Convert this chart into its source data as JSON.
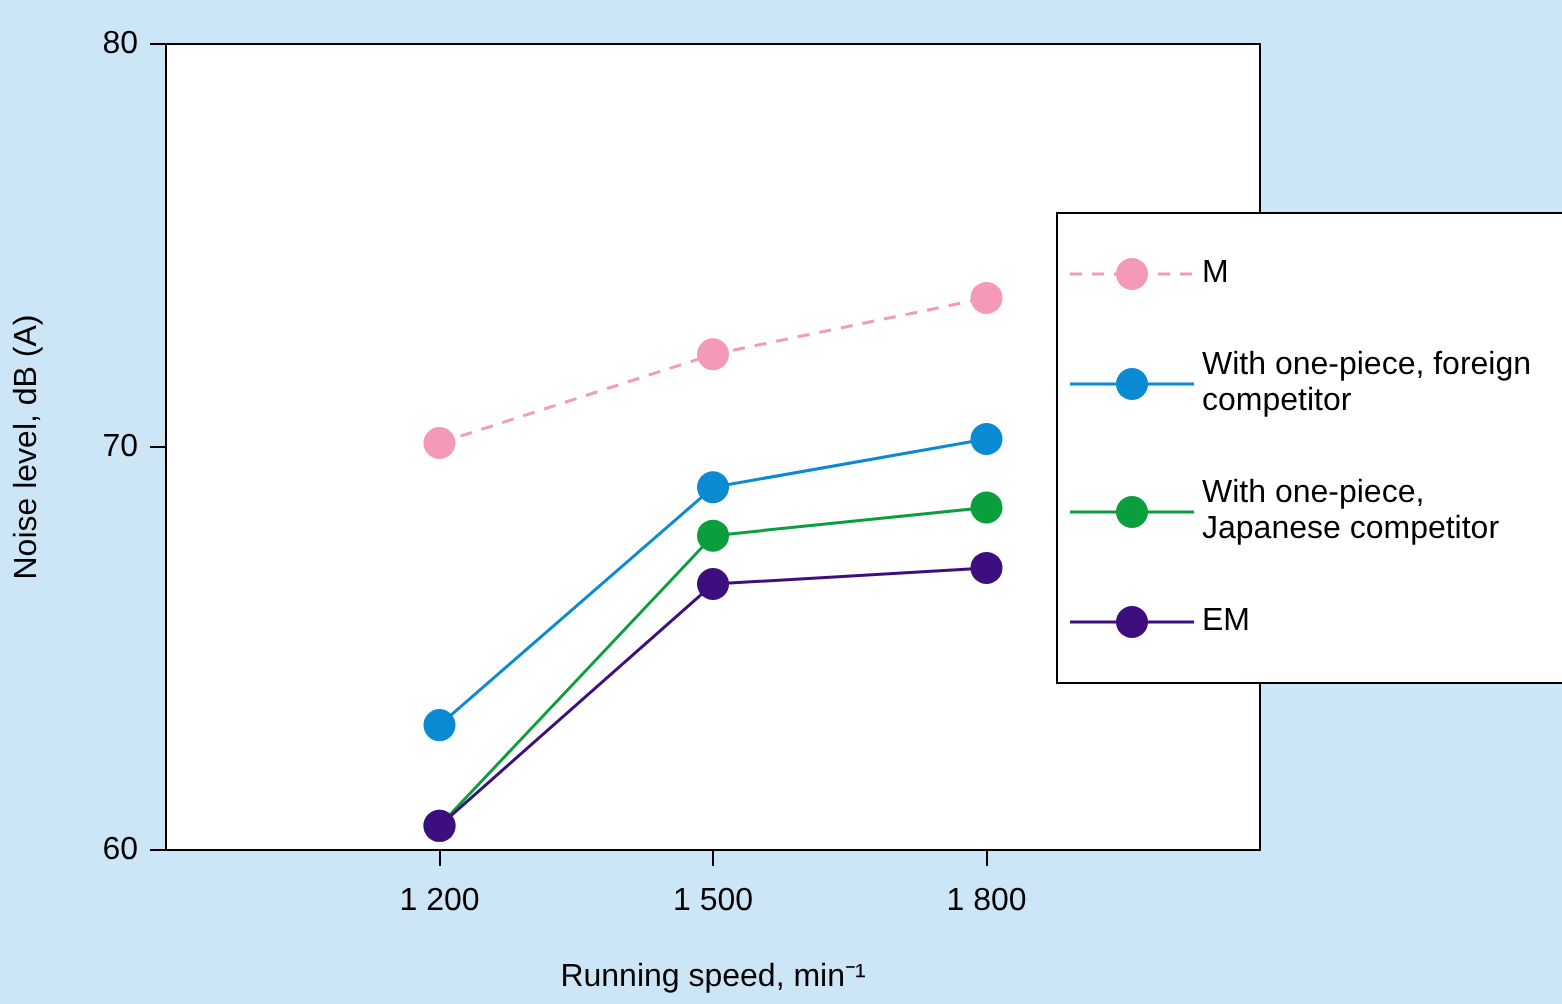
{
  "chart_data": {
    "type": "line",
    "xlabel": "Running speed, min⁻¹",
    "ylabel": "Noise level, dB (A)",
    "x": [
      1200,
      1500,
      1800
    ],
    "xlim": [
      900,
      2100
    ],
    "xticks": [
      {
        "value": 1200,
        "label": "1 200"
      },
      {
        "value": 1500,
        "label": "1 500"
      },
      {
        "value": 1800,
        "label": "1 800"
      }
    ],
    "ylim": [
      60,
      80
    ],
    "yticks": [
      60,
      70,
      80
    ],
    "grid": false,
    "legend": "right",
    "marker": "circle",
    "series": [
      {
        "name": "M",
        "color": "#f49ab8",
        "line_style": "dashed",
        "values": [
          70.1,
          72.3,
          73.7
        ]
      },
      {
        "name": "With one-piece, foreign competitor",
        "color": "#0a8ad2",
        "line_style": "solid",
        "values": [
          63.1,
          69.0,
          70.2
        ]
      },
      {
        "name": "With one-piece, Japanese competitor",
        "color": "#0a9e3c",
        "line_style": "solid",
        "values": [
          60.6,
          67.8,
          68.5
        ]
      },
      {
        "name": "EM",
        "color": "#3d0f7e",
        "line_style": "solid",
        "values": [
          60.6,
          66.6,
          67.0
        ]
      }
    ]
  }
}
